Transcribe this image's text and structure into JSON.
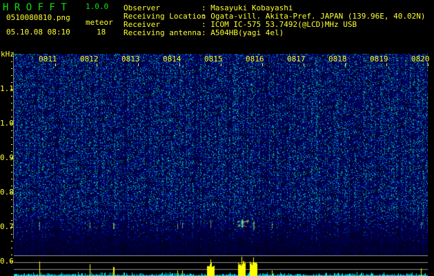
{
  "header": {
    "app_name": "H R O F F T",
    "version": "1.0.0",
    "filename": "0510080810.png",
    "datetime": "05.10.08 08:10",
    "meteor_label": "meteor",
    "meteor_count": "18",
    "info": [
      {
        "label": "Observer",
        "value": ": Masayuki Kobayashi"
      },
      {
        "label": "Receiving Location",
        "value": ": Ogata-vill. Akita-Pref. JAPAN (139.96E, 40.02N)"
      },
      {
        "label": "Receiver",
        "value": ": ICOM IC-575 53.7492(@LCD)MHz USB"
      },
      {
        "label": "Receiving antenna",
        "value": ": A504HB(yagi 4el)"
      }
    ]
  },
  "colors": {
    "text": "#ffff30",
    "title": "#10e010",
    "background": "#000000",
    "noise": "#1020c0",
    "strip": "#00e8f0",
    "strip_meteor": "#ffff00"
  },
  "chart_data": {
    "type": "heatmap",
    "ylabel": "kHz",
    "x_ticks": [
      "0811",
      "0812",
      "0813",
      "0814",
      "0815",
      "0816",
      "0817",
      "0818",
      "0819",
      "0820"
    ],
    "x_range": [
      "08:10:00",
      "08:20:00"
    ],
    "y_ticks": [
      "1.1",
      "1.0",
      "0.9",
      "0.8",
      "0.7",
      "0.6"
    ],
    "y_range_khz": [
      0.6,
      1.2
    ],
    "meteor_events": [
      {
        "time": "08:10:37",
        "freq_khz": 0.705,
        "strength": 0.75
      },
      {
        "time": "08:11:50",
        "freq_khz": 0.705,
        "strength": 0.6
      },
      {
        "time": "08:12:24",
        "freq_khz": 0.703,
        "strength": 0.45
      },
      {
        "time": "08:12:25",
        "freq_khz": 0.703,
        "strength": 0.45
      },
      {
        "time": "08:13:57",
        "freq_khz": 0.702,
        "strength": 0.3
      },
      {
        "time": "08:14:04",
        "freq_khz": 0.704,
        "strength": 0.3
      },
      {
        "time": "08:14:45",
        "freq_khz": 0.71,
        "strength": 0.85
      },
      {
        "time": "08:15:30",
        "freq_khz": 0.71,
        "strength": 1.0
      },
      {
        "time": "08:15:47",
        "freq_khz": 0.705,
        "strength": 0.95
      },
      {
        "time": "08:16:14",
        "freq_khz": 0.704,
        "strength": 0.3
      },
      {
        "time": "08:19:50",
        "freq_khz": 0.705,
        "strength": 0.4
      }
    ]
  }
}
